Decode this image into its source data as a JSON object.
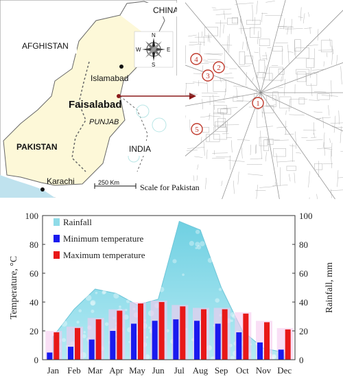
{
  "map": {
    "labels": {
      "china": "CHINA",
      "afghistan": "AFGHISTAN",
      "islamabad": "Islamabad",
      "faisalabad": "Faisalabad",
      "punjab": "PUNJAB",
      "pakistan": "PAKISTAN",
      "india": "INDIA",
      "karachi": "Karachi",
      "scale_bar": "250 Km",
      "scale_caption": "Scale for Pakistan"
    },
    "compass": {
      "n": "N",
      "s": "S",
      "e": "E",
      "w": "W"
    },
    "colors": {
      "pakistan": "#fdf8d8",
      "other_land": "#ffffff",
      "border": "#555555",
      "sea": "#bfe2ee",
      "arrow": "#8b1a1a"
    }
  },
  "city": {
    "sites": [
      "1",
      "2",
      "3",
      "4",
      "5"
    ],
    "colors": {
      "site": "#c0392b",
      "roads": "#7a7a7a"
    }
  },
  "chart_data": {
    "type": "bar",
    "categories": [
      "Jan",
      "Feb",
      "Mar",
      "Apr",
      "May",
      "Jun",
      "Jul",
      "Aug",
      "Sep",
      "Oct",
      "Nov",
      "Dec"
    ],
    "series": [
      {
        "name": "Rainfall",
        "type": "area",
        "axis": "right",
        "color": "#8fdbe8",
        "values": [
          16,
          35,
          49,
          46,
          38,
          42,
          96,
          90,
          50,
          20,
          8,
          5
        ]
      },
      {
        "name": "Minimum temperature",
        "type": "bar",
        "axis": "left",
        "color": "#1a1aee",
        "values": [
          5,
          9,
          14,
          20,
          25,
          27,
          28,
          27,
          25,
          19,
          12,
          7
        ]
      },
      {
        "name": "Maximum temperature",
        "type": "bar",
        "axis": "left",
        "color": "#e81818",
        "values": [
          19,
          22,
          28,
          34,
          39,
          40,
          37,
          35,
          35,
          32,
          26,
          21
        ]
      }
    ],
    "ylabel": "Temperature, °C",
    "y2label": "Rainfall, mm",
    "ylim": [
      0,
      100
    ],
    "y2lim": [
      0,
      100
    ],
    "yticks": [
      "0",
      "20",
      "40",
      "60",
      "80",
      "100"
    ],
    "y2ticks": [
      "0",
      "20",
      "40",
      "60",
      "80",
      "100"
    ],
    "legend": "top-left",
    "grid": false
  }
}
